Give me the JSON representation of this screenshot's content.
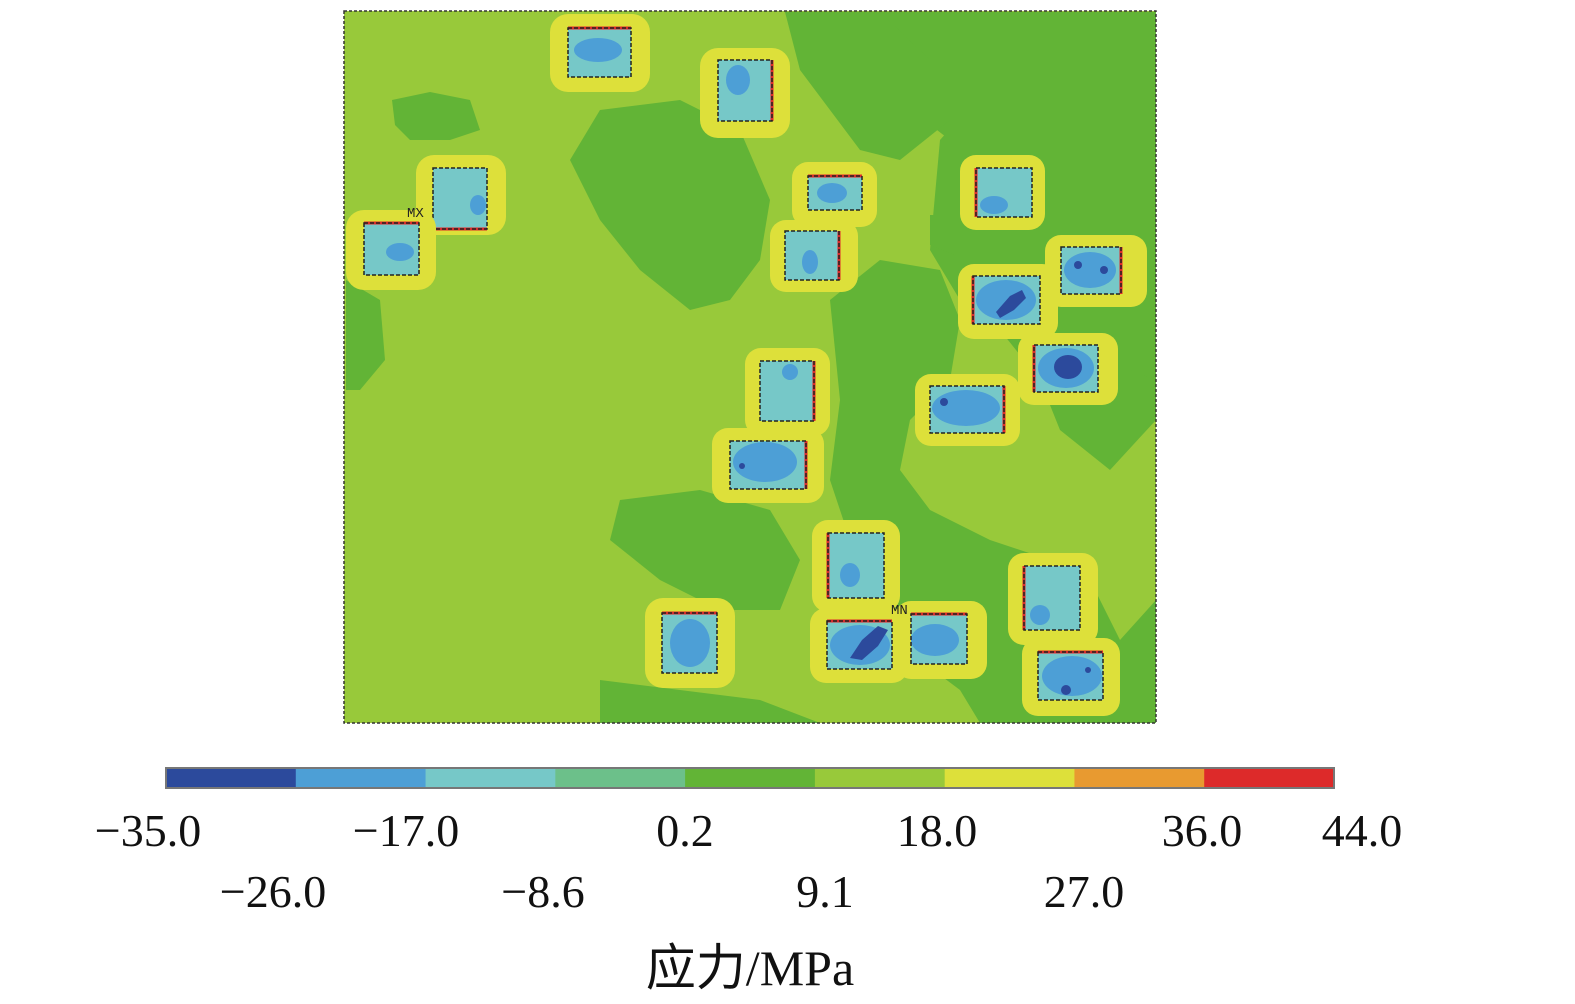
{
  "plot": {
    "markers": {
      "max": "MX",
      "min": "MN"
    }
  },
  "colorbar": {
    "bands": [
      "#2c4a9c",
      "#4d9fd6",
      "#76c8c8",
      "#6cc08a",
      "#62b436",
      "#98c93a",
      "#dde03a",
      "#e89a30",
      "#dd2a2a"
    ],
    "ticks_upper": [
      "−35.0",
      "−17.0",
      "0.2",
      "18.0",
      "36.0",
      "44.0"
    ],
    "ticks_lower": [
      "−26.0",
      "−8.6",
      "9.1",
      "27.0"
    ],
    "unit": "应力/MPa"
  },
  "colors": {
    "background_green": "#98c93a",
    "region_green": "#62b436",
    "block_cyan": "#76c8c8",
    "core_blue": "#4d9fd6",
    "peak_blue": "#2c4a9c",
    "halo_yellow": "#dde03a",
    "edge_orange": "#e89a30",
    "edge_red": "#dd2a2a"
  }
}
